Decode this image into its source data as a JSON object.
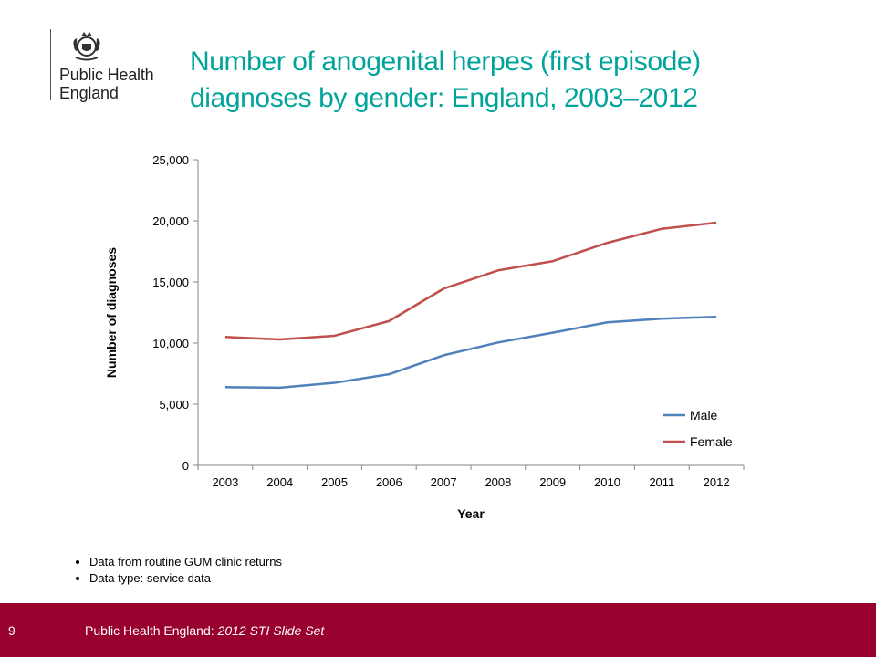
{
  "logo": {
    "line1": "Public Health",
    "line2": "England"
  },
  "title": {
    "line1": "Number of anogenital herpes (first episode)",
    "line2": "diagnoses by gender: England, 2003–2012"
  },
  "chart_data": {
    "type": "line",
    "title": "Number of anogenital herpes (first episode) diagnoses by gender: England, 2003–2012",
    "xlabel": "Year",
    "ylabel": "Number of diagnoses",
    "categories": [
      "2003",
      "2004",
      "2005",
      "2006",
      "2007",
      "2008",
      "2009",
      "2010",
      "2011",
      "2012"
    ],
    "ylim": [
      0,
      25000
    ],
    "yticks": [
      0,
      5000,
      10000,
      15000,
      20000,
      25000
    ],
    "ytick_labels": [
      "0",
      "5,000",
      "10,000",
      "15,000",
      "20,000",
      "25,000"
    ],
    "grid": false,
    "legend_position": "bottom-right",
    "series": [
      {
        "name": "Male",
        "color": "#4f81bd",
        "values": [
          6400,
          6350,
          6750,
          7450,
          9000,
          10050,
          10850,
          11700,
          12000,
          12150
        ]
      },
      {
        "name": "Female",
        "color": "#c0504d",
        "values": [
          10500,
          10300,
          10600,
          11800,
          14450,
          15950,
          16700,
          18200,
          19350,
          19850
        ]
      }
    ]
  },
  "notes": [
    "Data from routine GUM clinic returns",
    "Data type: service data"
  ],
  "footer": {
    "page_number": "9",
    "org": "Public Health England: ",
    "doc": "2012 STI Slide Set",
    "bg_color": "#98002e"
  }
}
